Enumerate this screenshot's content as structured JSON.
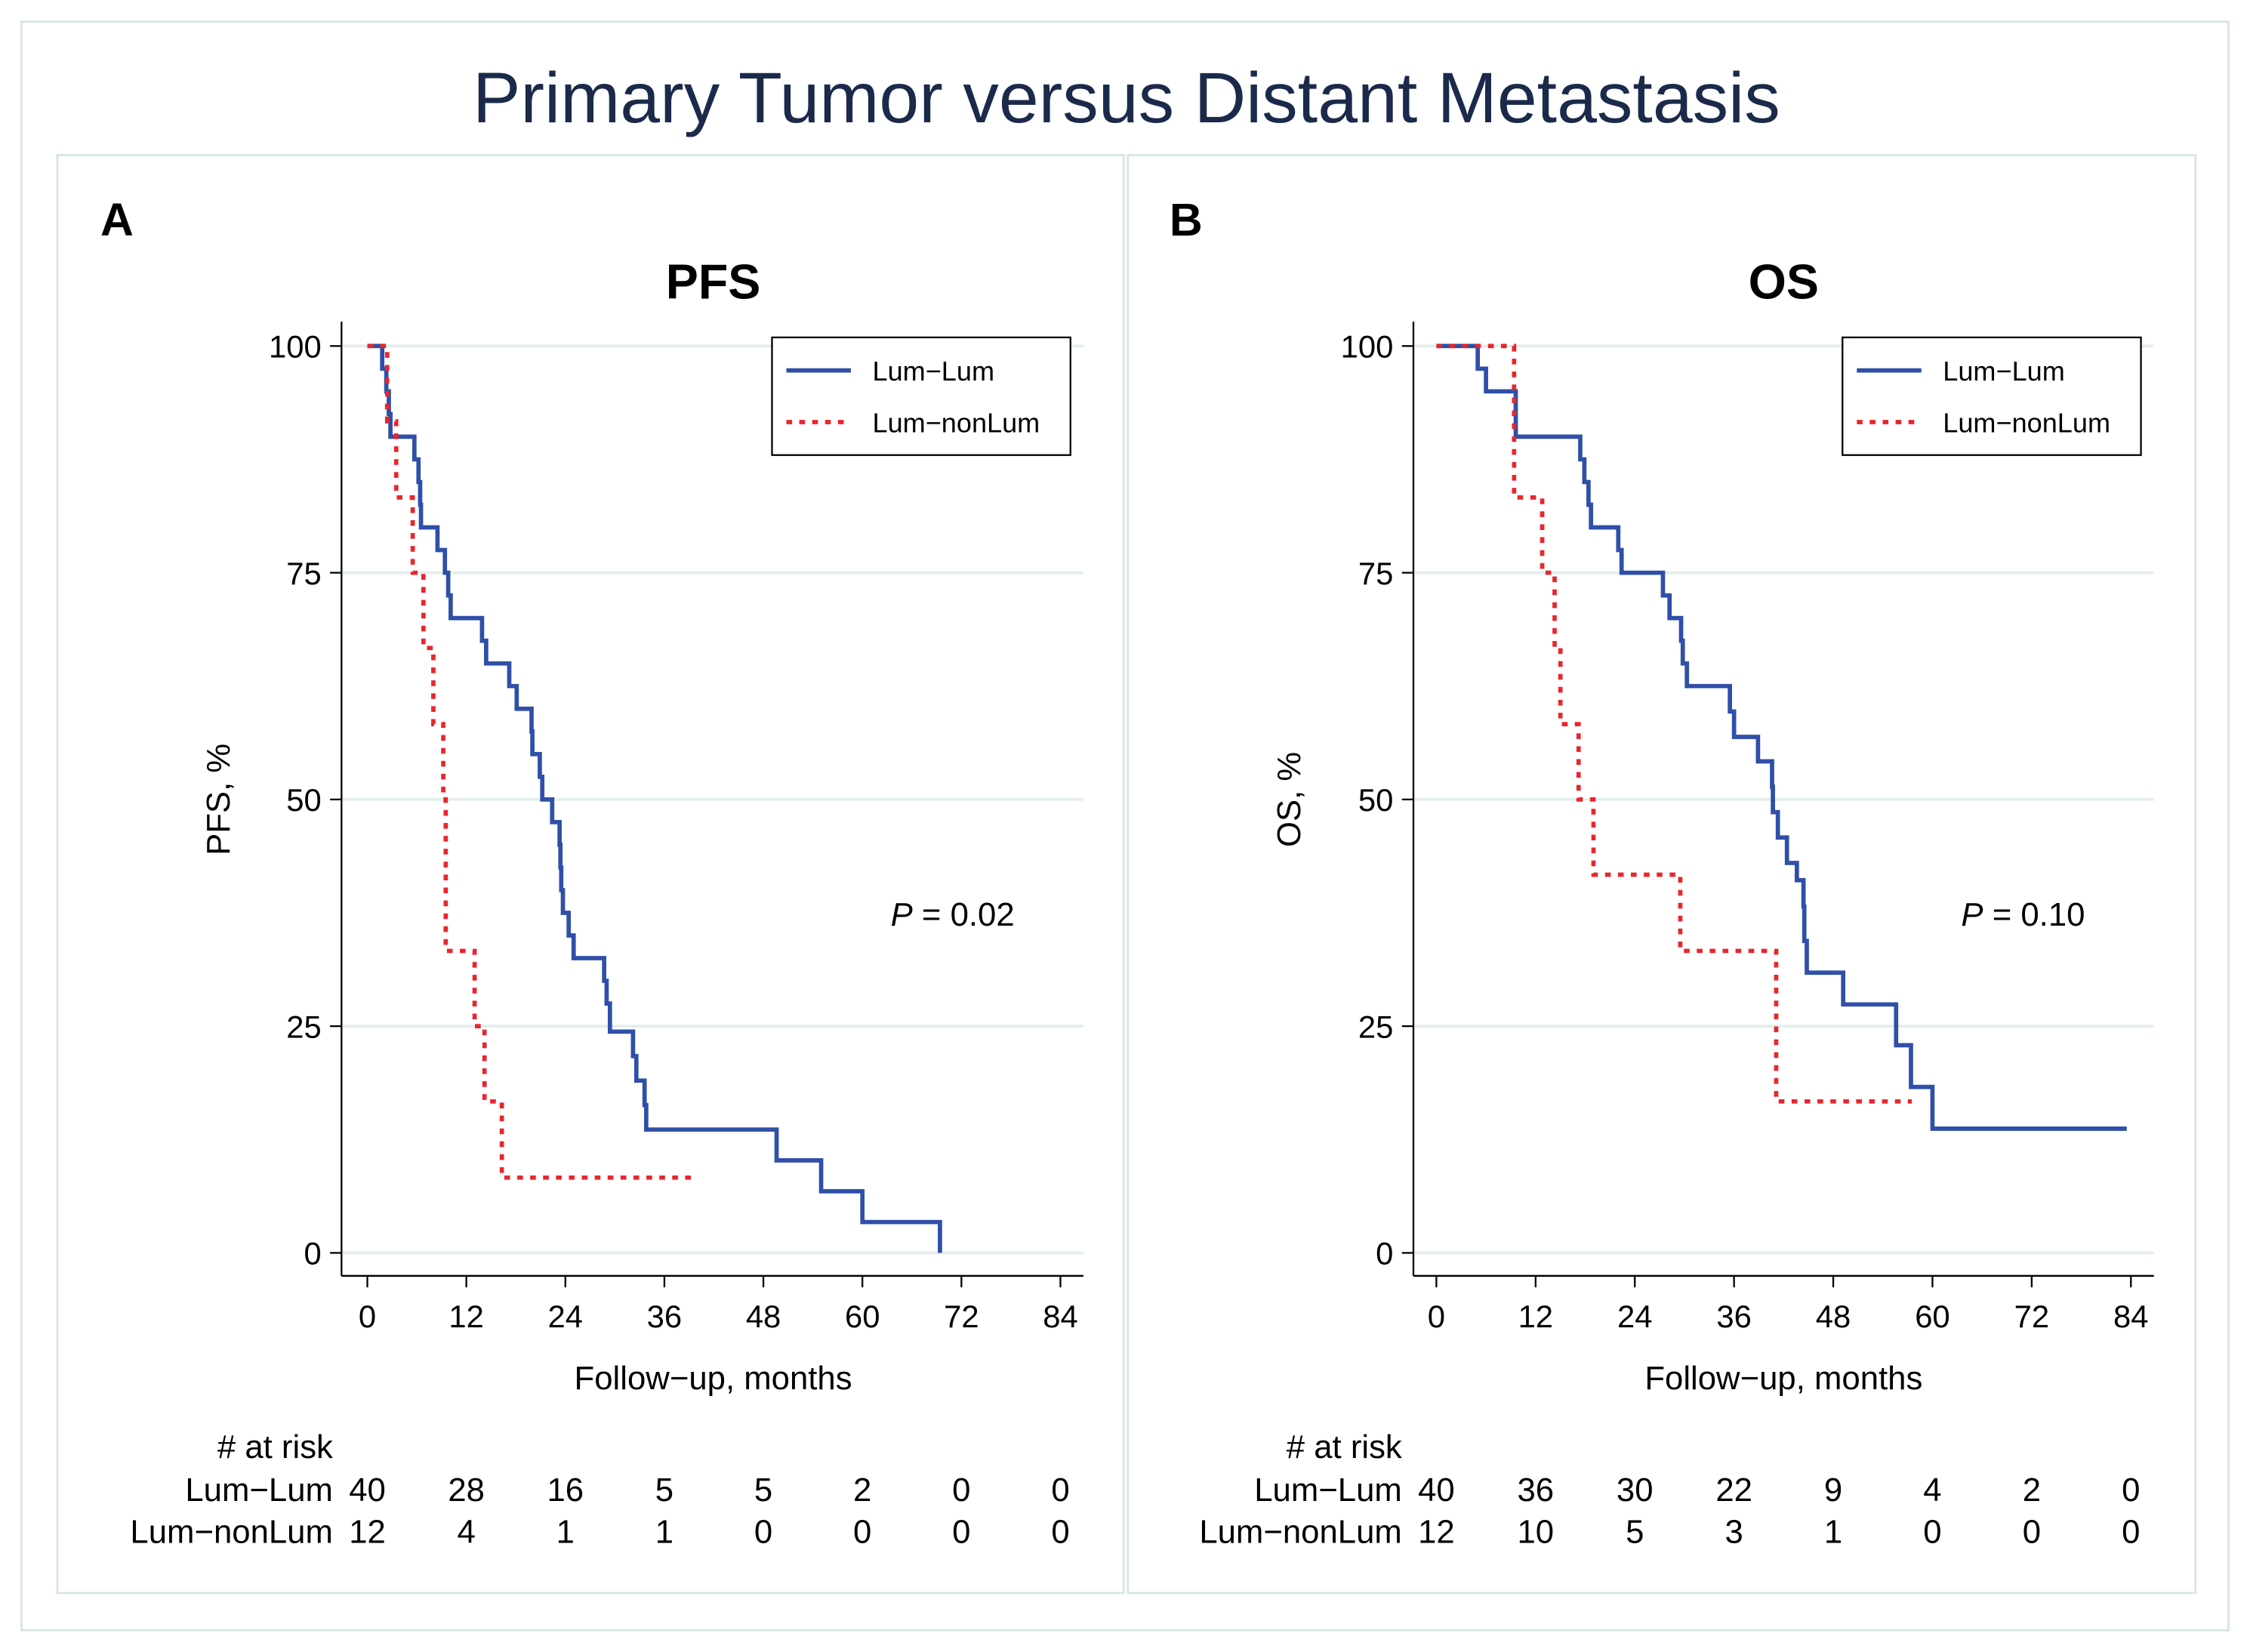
{
  "title": "Primary Tumor versus Distant Metastasis",
  "colors": {
    "lum_lum": "#2f4fa8",
    "lum_nonlum": "#e8262d",
    "title": "#1b2a4a",
    "grid": "#e3efec",
    "frame": "#d7e6e3"
  },
  "chart_data": [
    {
      "type": "line",
      "panel_letter": "A",
      "title": "PFS",
      "xlabel": "Follow−up, months",
      "ylabel": "PFS, %",
      "xlim": [
        0,
        84
      ],
      "ylim": [
        0,
        100
      ],
      "xticks": [
        0,
        12,
        24,
        36,
        48,
        60,
        72,
        84
      ],
      "yticks": [
        0,
        25,
        50,
        75,
        100
      ],
      "grid": true,
      "legend": {
        "placement": "top-right",
        "entries": [
          "Lum−Lum",
          "Lum−nonLum"
        ]
      },
      "annotation": {
        "italic": "P",
        "text": " = 0.02"
      },
      "series": [
        {
          "name": "Lum−Lum",
          "style": "solid",
          "end": 69.4,
          "steps": [
            [
              0,
              100
            ],
            [
              1.8,
              97.5
            ],
            [
              2.3,
              95
            ],
            [
              2.6,
              92.5
            ],
            [
              2.8,
              90
            ],
            [
              5.7,
              87.5
            ],
            [
              6.2,
              85
            ],
            [
              6.4,
              82.5
            ],
            [
              6.5,
              80
            ],
            [
              8.5,
              77.5
            ],
            [
              9.4,
              75
            ],
            [
              9.8,
              72.5
            ],
            [
              10.1,
              70
            ],
            [
              13.9,
              67.5
            ],
            [
              14.4,
              65
            ],
            [
              17.2,
              62.5
            ],
            [
              18.1,
              60
            ],
            [
              19.9,
              57.5
            ],
            [
              20,
              55
            ],
            [
              20.9,
              52.5
            ],
            [
              21.2,
              50
            ],
            [
              22.4,
              47.5
            ],
            [
              23.3,
              45
            ],
            [
              23.4,
              42.5
            ],
            [
              23.5,
              40
            ],
            [
              23.7,
              37.5
            ],
            [
              24.4,
              35
            ],
            [
              25,
              32.5
            ],
            [
              28.7,
              30
            ],
            [
              29,
              27.5
            ],
            [
              29.4,
              24.4
            ],
            [
              32.2,
              21.7
            ],
            [
              32.6,
              19
            ],
            [
              33.6,
              16.3
            ],
            [
              33.8,
              13.6
            ],
            [
              49.6,
              10.2
            ],
            [
              55,
              6.8
            ],
            [
              60,
              3.4
            ],
            [
              69.4,
              0
            ]
          ]
        },
        {
          "name": "Lum−nonLum",
          "style": "dotted",
          "end": 40,
          "steps": [
            [
              0,
              100
            ],
            [
              2.4,
              91.7
            ],
            [
              3.5,
              83.3
            ],
            [
              5.5,
              75
            ],
            [
              6.8,
              66.7
            ],
            [
              8,
              58.3
            ],
            [
              9.2,
              50
            ],
            [
              9.5,
              33.3
            ],
            [
              13,
              25
            ],
            [
              14.2,
              16.7
            ],
            [
              16.3,
              8.3
            ]
          ]
        }
      ],
      "risk_table": {
        "header": "# at risk",
        "rows": [
          {
            "label": "Lum−Lum",
            "values": [
              40,
              28,
              16,
              5,
              5,
              2,
              0,
              0
            ]
          },
          {
            "label": "Lum−nonLum",
            "values": [
              12,
              4,
              1,
              1,
              0,
              0,
              0,
              0
            ]
          }
        ]
      }
    },
    {
      "type": "line",
      "panel_letter": "B",
      "title": "OS",
      "xlabel": "Follow−up, months",
      "ylabel": "OS, %",
      "xlim": [
        0,
        84
      ],
      "ylim": [
        0,
        100
      ],
      "xticks": [
        0,
        12,
        24,
        36,
        48,
        60,
        72,
        84
      ],
      "yticks": [
        0,
        25,
        50,
        75,
        100
      ],
      "grid": true,
      "legend": {
        "placement": "top-right",
        "entries": [
          "Lum−Lum",
          "Lum−nonLum"
        ]
      },
      "annotation": {
        "italic": "P",
        "text": " = 0.10"
      },
      "series": [
        {
          "name": "Lum−Lum",
          "style": "solid",
          "end": 83.5,
          "steps": [
            [
              0,
              100
            ],
            [
              5,
              97.5
            ],
            [
              6,
              95
            ],
            [
              9.6,
              90
            ],
            [
              17.4,
              87.5
            ],
            [
              17.9,
              85
            ],
            [
              18.4,
              82.5
            ],
            [
              18.7,
              80
            ],
            [
              22,
              77.5
            ],
            [
              22.4,
              75
            ],
            [
              27.4,
              72.5
            ],
            [
              28.2,
              70
            ],
            [
              29.6,
              67.5
            ],
            [
              29.8,
              65
            ],
            [
              30.3,
              62.5
            ],
            [
              35.5,
              59.7
            ],
            [
              36,
              56.9
            ],
            [
              38.9,
              54.2
            ],
            [
              40.6,
              51.4
            ],
            [
              40.7,
              48.6
            ],
            [
              41.3,
              45.8
            ],
            [
              42.4,
              43
            ],
            [
              43.6,
              41.1
            ],
            [
              44.4,
              38.2
            ],
            [
              44.5,
              34.4
            ],
            [
              44.8,
              30.9
            ],
            [
              49.2,
              27.4
            ],
            [
              55.6,
              22.9
            ],
            [
              57.4,
              18.3
            ],
            [
              60,
              13.7
            ]
          ]
        },
        {
          "name": "Lum−nonLum",
          "style": "dotted",
          "end": 57.5,
          "steps": [
            [
              0,
              100
            ],
            [
              9.4,
              83.3
            ],
            [
              12.8,
              75
            ],
            [
              14.3,
              66.7
            ],
            [
              15,
              58.3
            ],
            [
              17.2,
              50
            ],
            [
              19,
              41.7
            ],
            [
              29.5,
              33.3
            ],
            [
              41.1,
              16.7
            ]
          ]
        }
      ],
      "risk_table": {
        "header": "# at risk",
        "rows": [
          {
            "label": "Lum−Lum",
            "values": [
              40,
              36,
              30,
              22,
              9,
              4,
              2,
              0
            ]
          },
          {
            "label": "Lum−nonLum",
            "values": [
              12,
              10,
              5,
              3,
              1,
              0,
              0,
              0
            ]
          }
        ]
      }
    }
  ]
}
